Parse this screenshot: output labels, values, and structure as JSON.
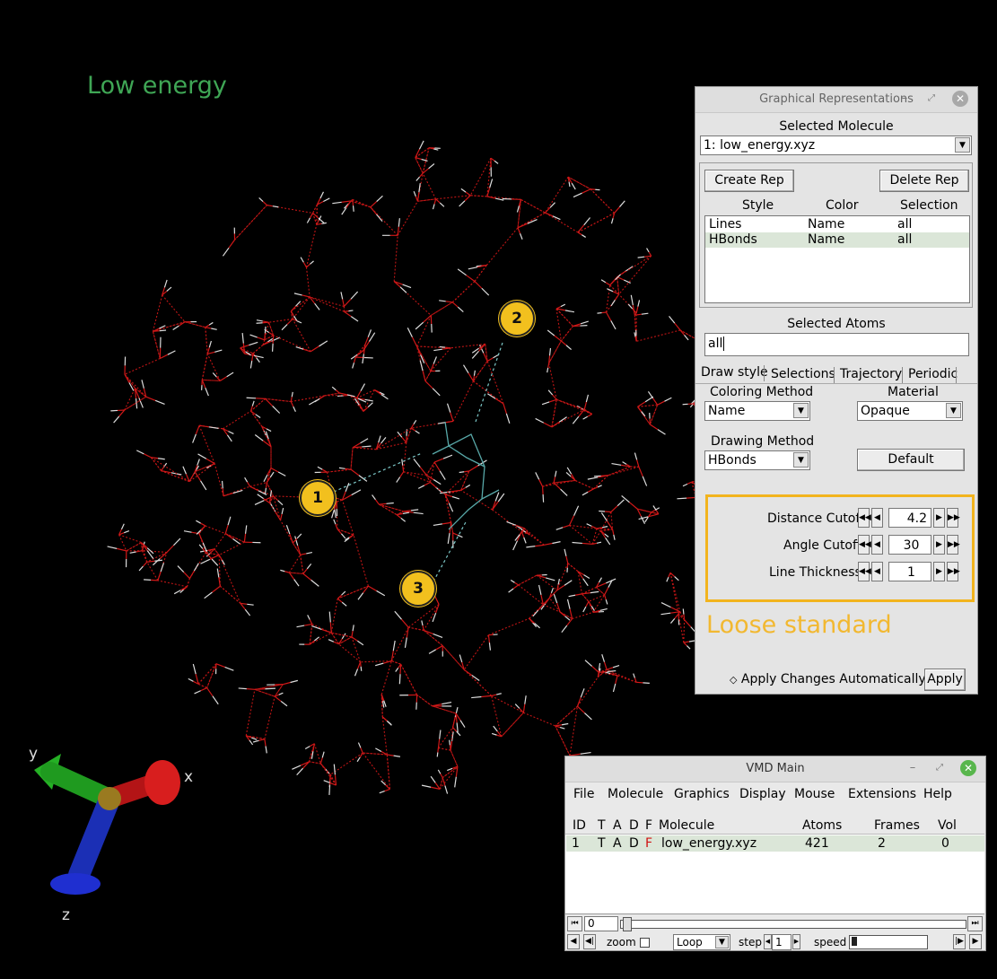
{
  "viewport": {
    "overlay_title": "Low energy",
    "callouts": [
      "1",
      "2",
      "3"
    ],
    "axes": {
      "x": "x",
      "y": "y",
      "z": "z",
      "x_color": "#c8161a",
      "y_color": "#25b025",
      "z_color": "#1f2fbf"
    }
  },
  "reps_window": {
    "title": "Graphical Representations",
    "selected_molecule_label": "Selected Molecule",
    "selected_molecule": "1: low_energy.xyz",
    "create_rep": "Create Rep",
    "delete_rep": "Delete Rep",
    "columns": [
      "Style",
      "Color",
      "Selection"
    ],
    "reps": [
      {
        "style": "Lines",
        "color": "Name",
        "selection": "all"
      },
      {
        "style": "HBonds",
        "color": "Name",
        "selection": "all"
      }
    ],
    "selected_atoms_label": "Selected Atoms",
    "selected_atoms": "all",
    "tabs": [
      "Draw style",
      "Selections",
      "Trajectory",
      "Periodic"
    ],
    "coloring_method_label": "Coloring Method",
    "coloring_method": "Name",
    "material_label": "Material",
    "material": "Opaque",
    "drawing_method_label": "Drawing Method",
    "drawing_method": "HBonds",
    "default_btn": "Default",
    "params": [
      {
        "label": "Distance Cutoff",
        "value": "4.2"
      },
      {
        "label": "Angle Cutoff",
        "value": "30"
      },
      {
        "label": "Line Thickness",
        "value": "1"
      }
    ],
    "annotation": "Loose standard",
    "apply_auto": "Apply Changes Automatically",
    "apply": "Apply"
  },
  "main_window": {
    "title": "VMD Main",
    "menu": [
      "File",
      "Molecule",
      "Graphics",
      "Display",
      "Mouse",
      "Extensions",
      "Help"
    ],
    "columns": [
      "ID",
      "T",
      "A",
      "D",
      "F",
      "Molecule",
      "Atoms",
      "Frames",
      "Vol"
    ],
    "row": {
      "id": "1",
      "t": "T",
      "a": "A",
      "d": "D",
      "f": "F",
      "molecule": "low_energy.xyz",
      "atoms": "421",
      "frames": "2",
      "vol": "0"
    },
    "frame": "0",
    "zoom": "zoom",
    "loop": "Loop",
    "step_label": "step",
    "step": "1",
    "speed_label": "speed"
  }
}
